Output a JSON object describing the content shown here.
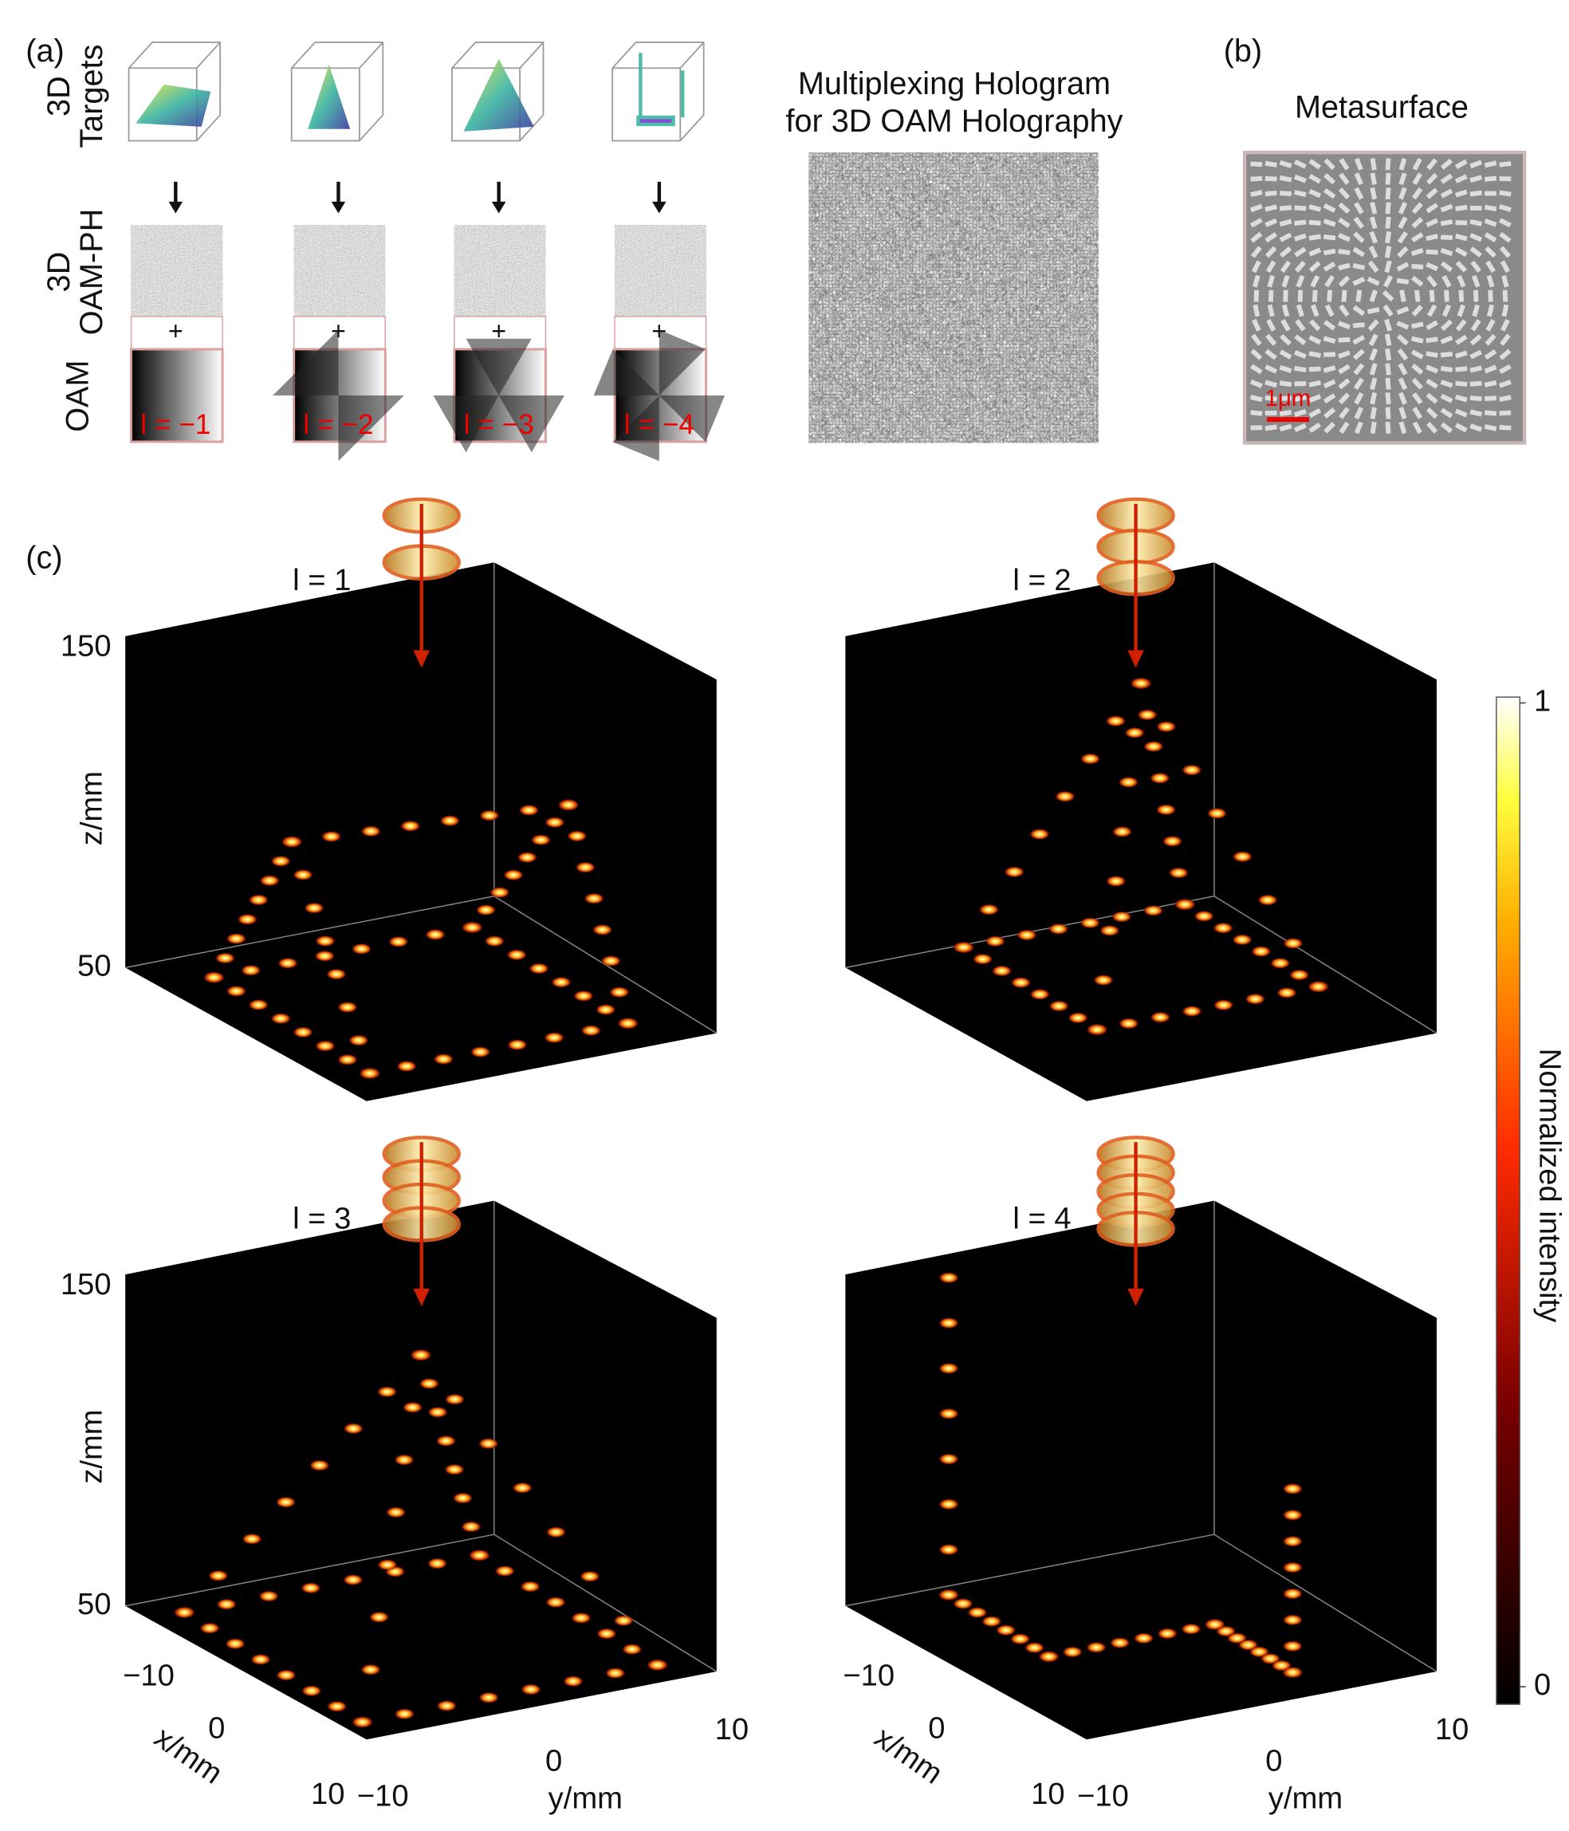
{
  "panel_a": {
    "label": "(a)",
    "row_labels": [
      [
        "3D",
        "Targets"
      ],
      [
        "3D",
        "OAM-PH"
      ],
      [
        "OAM"
      ]
    ],
    "plus": "+",
    "oam_labels": [
      "l = −1",
      "l = −2",
      "l = −3",
      "l = −4"
    ],
    "hologram_title": [
      "Multiplexing Hologram",
      "for 3D OAM Holography"
    ]
  },
  "panel_b": {
    "label": "(b)",
    "title": "Metasurface",
    "scale_bar": "1μm"
  },
  "panel_c": {
    "label": "(c)",
    "plots": [
      "l = 1",
      "l = 2",
      "l = 3",
      "l = 4"
    ],
    "z_label": "z/mm",
    "z_ticks": [
      "150",
      "50"
    ],
    "x_label": "x/mm",
    "x_ticks": [
      "−10",
      "0",
      "10"
    ],
    "y_label": "y/mm",
    "y_ticks": [
      "−10",
      "0",
      "10"
    ],
    "colorbar": {
      "label": "Normalized intensity",
      "ticks": [
        0,
        1
      ]
    }
  }
}
